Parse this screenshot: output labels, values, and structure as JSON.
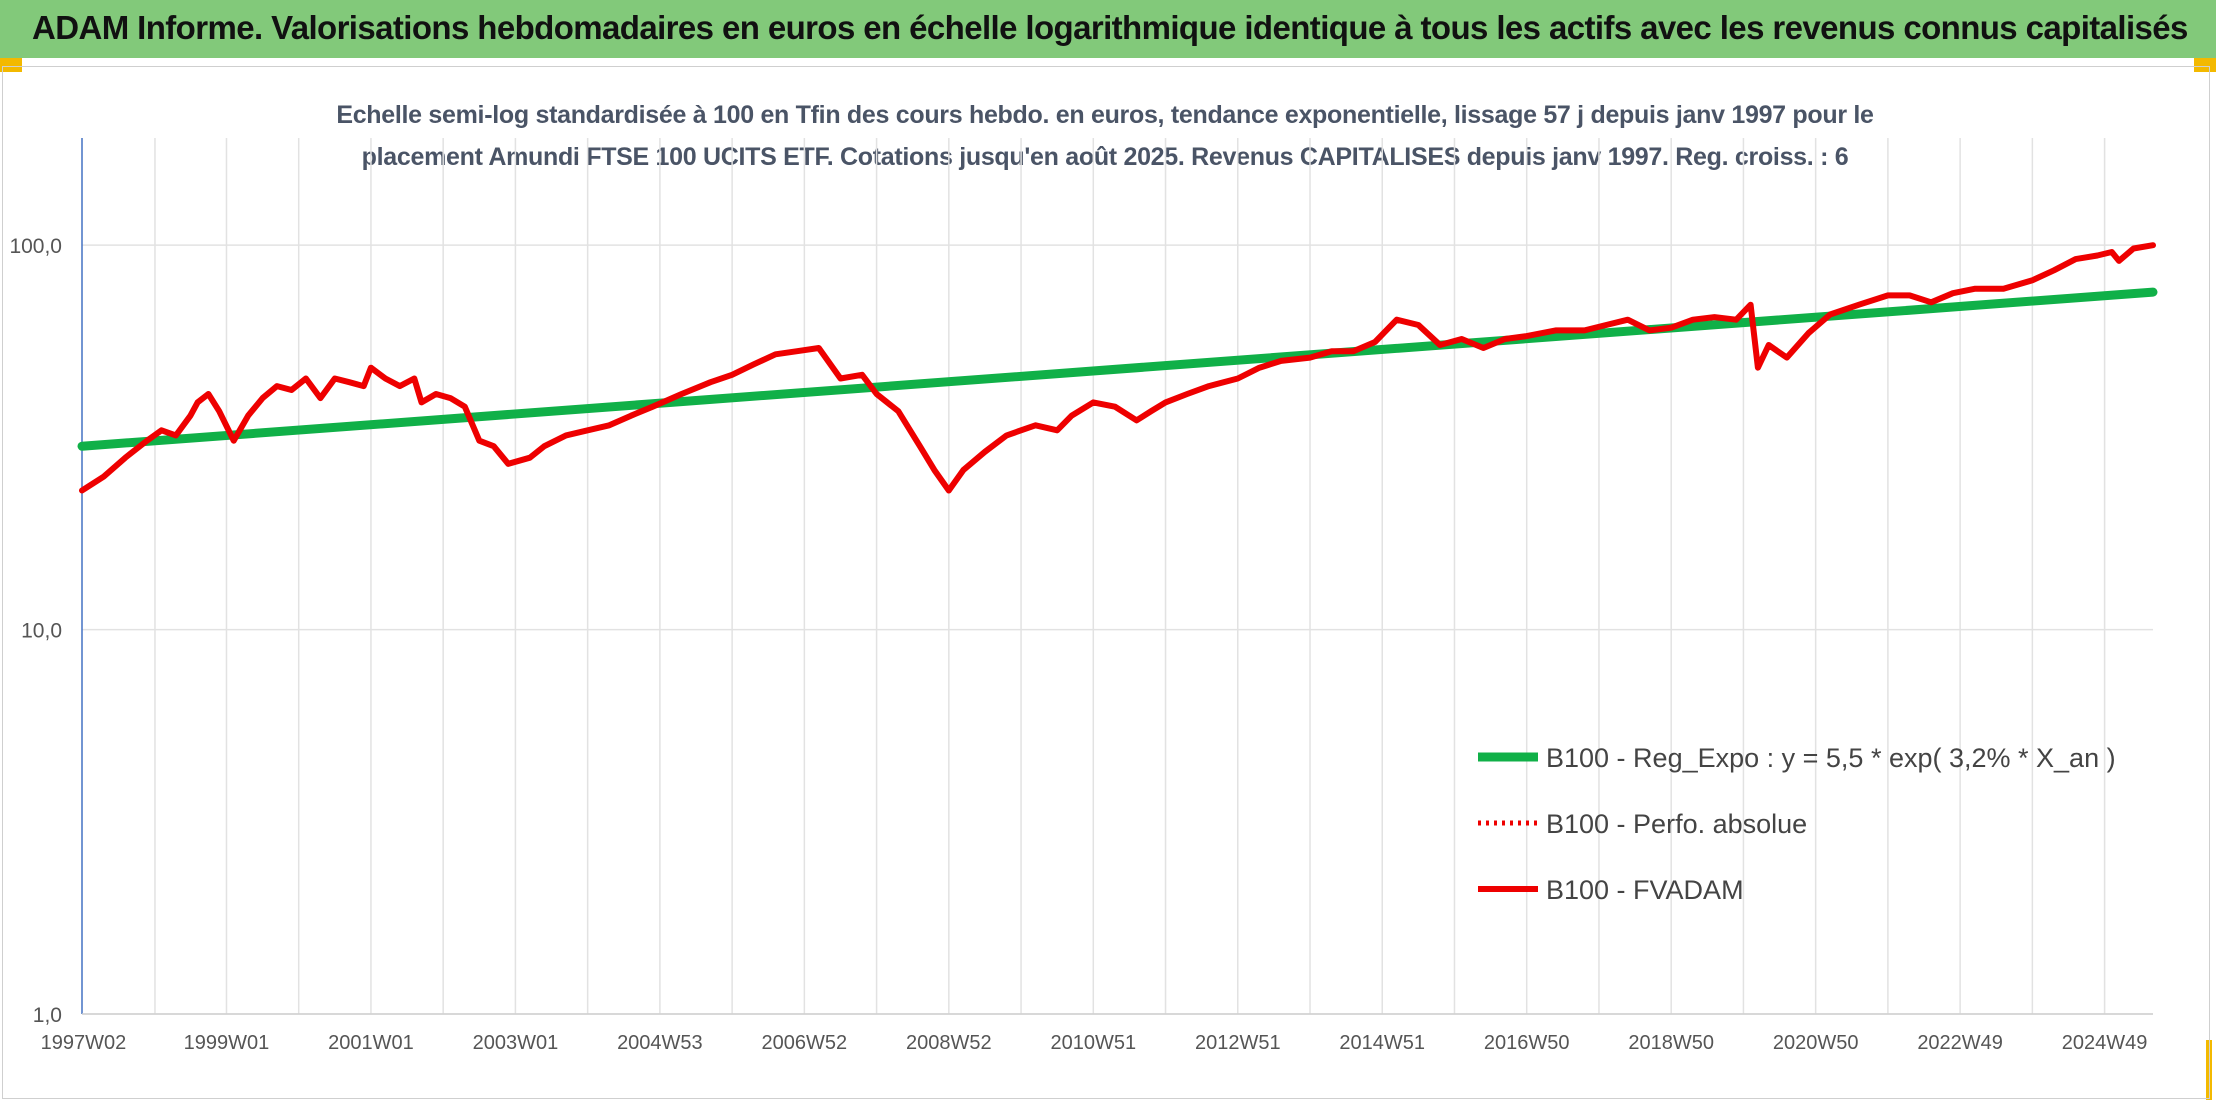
{
  "banner": {
    "title": "ADAM Informe. Valorisations hebdomadaires en euros en échelle logarithmique identique à tous les actifs avec les revenus connus capitalisés"
  },
  "colors": {
    "banner_bg": "#82c97a",
    "regression": "#10b048",
    "series": "#ee0000",
    "grid": "#e2e2e2",
    "accent_corner": "#f3b900"
  },
  "chart_data": {
    "type": "line",
    "title_lines": [
      "Echelle semi-log standardisée à 100 en Tfin des cours hebdo. en euros, tendance exponentielle, lissage 57 j depuis janv 1997 pour le",
      "placement Amundi FTSE 100 UCITS ETF. Cotations jusqu'en août 2025. Revenus CAPITALISES depuis janv 1997. Reg. croiss. : 6"
    ],
    "y_scale": "log",
    "ylim": [
      1,
      190
    ],
    "y_ticks": [
      {
        "value": 1,
        "label": "1,0"
      },
      {
        "value": 10,
        "label": "10,0"
      },
      {
        "value": 100,
        "label": "100,0"
      }
    ],
    "xlim": [
      1997.0,
      2025.67
    ],
    "x_ticks": [
      {
        "value": 1997.02,
        "label": "1997W02"
      },
      {
        "value": 1999.0,
        "label": "1999W01"
      },
      {
        "value": 2001.0,
        "label": "2001W01"
      },
      {
        "value": 2003.0,
        "label": "2003W01"
      },
      {
        "value": 2005.0,
        "label": "2004W53"
      },
      {
        "value": 2007.0,
        "label": "2006W52"
      },
      {
        "value": 2009.0,
        "label": "2008W52"
      },
      {
        "value": 2011.0,
        "label": "2010W51"
      },
      {
        "value": 2013.0,
        "label": "2012W51"
      },
      {
        "value": 2015.0,
        "label": "2014W51"
      },
      {
        "value": 2017.0,
        "label": "2016W50"
      },
      {
        "value": 2019.0,
        "label": "2018W50"
      },
      {
        "value": 2021.0,
        "label": "2020W50"
      },
      {
        "value": 2023.0,
        "label": "2022W49"
      },
      {
        "value": 2025.0,
        "label": "2024W49"
      }
    ],
    "grid": true,
    "legend_position": "lower-right",
    "series": [
      {
        "name": "B100 - Reg_Expo : y = 5,5 * exp( 3,2% *  X_an )",
        "style": "solid-thick",
        "color": "#10b048",
        "x": [
          1997.0,
          2025.67
        ],
        "y": [
          30,
          75.5
        ]
      },
      {
        "name": "B100 - Perfo. absolue",
        "style": "dotted",
        "color": "#ee0000",
        "x": [],
        "y": []
      },
      {
        "name": "B100 - FVADAM",
        "style": "solid",
        "color": "#ee0000",
        "x": [
          1997.0,
          1997.3,
          1997.6,
          1997.9,
          1998.1,
          1998.3,
          1998.5,
          1998.6,
          1998.75,
          1998.9,
          1999.1,
          1999.3,
          1999.5,
          1999.7,
          1999.9,
          2000.1,
          2000.3,
          2000.5,
          2000.7,
          2000.9,
          2001.0,
          2001.2,
          2001.4,
          2001.6,
          2001.7,
          2001.9,
          2002.1,
          2002.3,
          2002.5,
          2002.7,
          2002.9,
          2003.2,
          2003.4,
          2003.7,
          2004.0,
          2004.3,
          2004.6,
          2004.9,
          2005.3,
          2005.7,
          2006.0,
          2006.3,
          2006.6,
          2006.9,
          2007.2,
          2007.5,
          2007.8,
          2008.0,
          2008.3,
          2008.6,
          2008.8,
          2009.0,
          2009.2,
          2009.5,
          2009.8,
          2010.2,
          2010.5,
          2010.7,
          2011.0,
          2011.3,
          2011.6,
          2011.8,
          2012.0,
          2012.3,
          2012.6,
          2013.0,
          2013.3,
          2013.6,
          2014.0,
          2014.3,
          2014.6,
          2014.9,
          2015.2,
          2015.5,
          2015.8,
          2016.1,
          2016.4,
          2016.7,
          2017.0,
          2017.4,
          2017.8,
          2018.1,
          2018.4,
          2018.7,
          2019.0,
          2019.3,
          2019.6,
          2019.9,
          2020.1,
          2020.2,
          2020.35,
          2020.6,
          2020.9,
          2021.2,
          2021.6,
          2022.0,
          2022.3,
          2022.6,
          2022.9,
          2023.2,
          2023.6,
          2024.0,
          2024.3,
          2024.6,
          2024.9,
          2025.1,
          2025.2,
          2025.4,
          2025.67
        ],
        "y": [
          23,
          25,
          28,
          31,
          33,
          32,
          36,
          39,
          41,
          37,
          31,
          36,
          40,
          43,
          42,
          45,
          40,
          45,
          44,
          43,
          48,
          45,
          43,
          45,
          39,
          41,
          40,
          38,
          31,
          30,
          27,
          28,
          30,
          32,
          33,
          34,
          36,
          38,
          41,
          44,
          46,
          49,
          52,
          53,
          54,
          45,
          46,
          41,
          37,
          30,
          26,
          23,
          26,
          29,
          32,
          34,
          33,
          36,
          39,
          38,
          35,
          37,
          39,
          41,
          43,
          45,
          48,
          50,
          51,
          53,
          53,
          56,
          64,
          62,
          55,
          57,
          54,
          57,
          58,
          60,
          60,
          62,
          64,
          60,
          61,
          64,
          65,
          64,
          70,
          48,
          55,
          51,
          59,
          66,
          70,
          74,
          74,
          71,
          75,
          77,
          77,
          81,
          86,
          92,
          94,
          96,
          91,
          98,
          100
        ]
      }
    ]
  }
}
